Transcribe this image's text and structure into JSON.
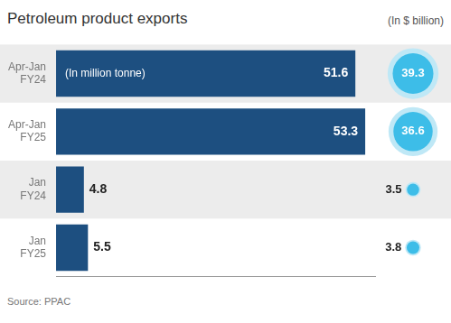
{
  "chart_data": {
    "type": "bar",
    "orientation": "horizontal",
    "title": "Petroleum product exports",
    "source": "Source: PPAC",
    "categories": [
      "Apr-Jan FY24",
      "Apr-Jan FY25",
      "Jan FY24",
      "Jan FY25"
    ],
    "series": [
      {
        "name": "(In million tonne)",
        "color": "#1d4f80",
        "values": [
          51.6,
          53.3,
          4.8,
          5.5
        ]
      },
      {
        "name": "(In $ billion)",
        "color": "#3dbde8",
        "marker": "circle",
        "values": [
          39.3,
          36.6,
          3.5,
          3.8
        ]
      }
    ],
    "xlim": [
      0,
      55
    ],
    "tick_labels": "y",
    "grid": false,
    "data_labels": true
  }
}
